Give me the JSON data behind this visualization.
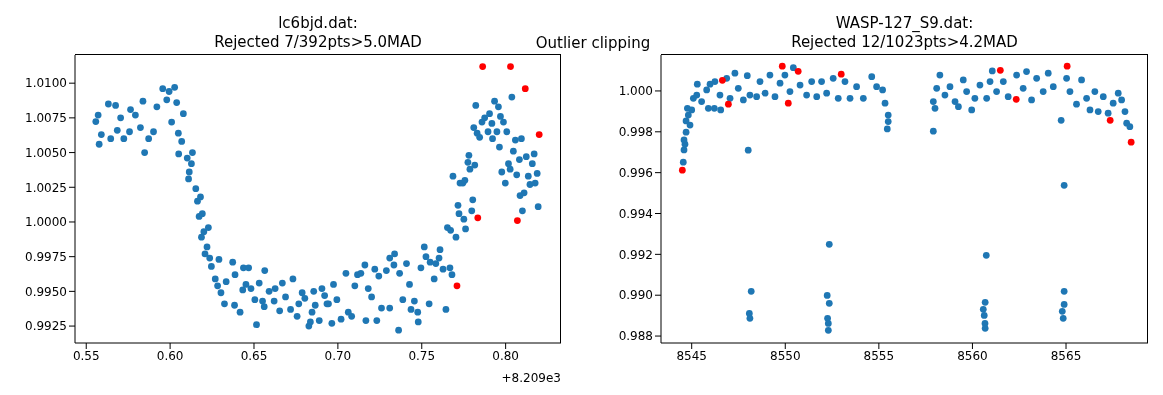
{
  "chart_data": [
    {
      "type": "scatter",
      "title": "lc6bjd.dat:\nRejected 7/392pts>5.0MAD",
      "xlabel": "+8.209e3",
      "annotations": [
        "Outlier clipping"
      ],
      "marker": "circle",
      "xlim": [
        0.5433,
        0.833
      ],
      "xticks": [
        0.55,
        {
          "value": 0.6,
          "label": "0.60"
        },
        0.65,
        {
          "value": 0.7,
          "label": "0.70"
        },
        0.75,
        {
          "value": 0.8,
          "label": "0.80"
        }
      ],
      "ylim": [
        0.99128,
        1.01203
      ],
      "yticks": [
        {
          "value": 0.9925,
          "label": "0.9925"
        },
        {
          "value": 0.995,
          "label": "0.9950"
        },
        {
          "value": 0.9975,
          "label": "0.9975"
        },
        {
          "value": 1,
          "label": "1.0000"
        },
        {
          "value": 1.0025,
          "label": "1.0025"
        },
        {
          "value": 1.005,
          "label": "1.0050"
        },
        {
          "value": 1.0075,
          "label": "1.0075"
        },
        {
          "value": 1.01,
          "label": "1.0100"
        }
      ],
      "series": [
        {
          "color": "#1f77b4",
          "x": [
            0.5557,
            0.5577,
            0.5571,
            0.559,
            0.5632,
            0.5675,
            0.5646,
            0.5685,
            0.5724,
            0.5705,
            0.5758,
            0.5764,
            0.5793,
            0.5838,
            0.5848,
            0.5823,
            0.5872,
            0.5901,
            0.5921,
            0.5956,
            0.5994,
            0.6027,
            0.598,
            0.6009,
            0.6039,
            0.6049,
            0.6079,
            0.6069,
            0.6051,
            0.6102,
            0.6133,
            0.6127,
            0.6114,
            0.611,
            0.6153,
            0.6163,
            0.6181,
            0.6173,
            0.6192,
            0.6187,
            0.6228,
            0.6201,
            0.622,
            0.6208,
            0.6236,
            0.6246,
            0.6269,
            0.6283,
            0.6303,
            0.6291,
            0.6324,
            0.6334,
            0.6373,
            0.6387,
            0.6384,
            0.6417,
            0.6433,
            0.6437,
            0.6468,
            0.6452,
            0.6482,
            0.6505,
            0.6515,
            0.6531,
            0.6564,
            0.6551,
            0.6561,
            0.659,
            0.6626,
            0.662,
            0.6653,
            0.6669,
            0.6688,
            0.6718,
            0.6732,
            0.6757,
            0.6767,
            0.6787,
            0.6803,
            0.6827,
            0.6836,
            0.6846,
            0.6856,
            0.6865,
            0.6889,
            0.6905,
            0.6921,
            0.6944,
            0.6964,
            0.6935,
            0.6974,
            0.6994,
            0.7019,
            0.7048,
            0.7062,
            0.7082,
            0.7101,
            0.7117,
            0.7137,
            0.7161,
            0.7167,
            0.7181,
            0.7201,
            0.722,
            0.7232,
            0.7244,
            0.726,
            0.7289,
            0.7309,
            0.7309,
            0.7334,
            0.7338,
            0.7362,
            0.7368,
            0.7387,
            0.7409,
            0.7427,
            0.7436,
            0.7456,
            0.7479,
            0.7476,
            0.7495,
            0.7515,
            0.7525,
            0.7544,
            0.755,
            0.7574,
            0.7584,
            0.7609,
            0.7603,
            0.7627,
            0.7644,
            0.7653,
            0.7672,
            0.7668,
            0.768,
            0.7704,
            0.7686,
            0.7716,
            0.7722,
            0.7728,
            0.7751,
            0.7761,
            0.7745,
            0.7757,
            0.7775,
            0.7781,
            0.7787,
            0.7804,
            0.7816,
            0.7798,
            0.781,
            0.7822,
            0.783,
            0.7845,
            0.7859,
            0.7875,
            0.7895,
            0.7904,
            0.7918,
            0.7922,
            0.7934,
            0.7948,
            0.7957,
            0.7969,
            0.7963,
            0.7987,
            0.7977,
            0.7998,
            0.8007,
            0.8017,
            0.8027,
            0.8037,
            0.8046,
            0.8058,
            0.8066,
            0.8082,
            0.8094,
            0.8086,
            0.81,
            0.811,
            0.8123,
            0.8135,
            0.8145,
            0.8159,
            0.817,
            0.8176,
            0.8188,
            0.8194
          ],
          "values": [
            1.00723,
            1.0056,
            1.0077,
            1.0063,
            1.0085,
            1.0084,
            1.006,
            1.0066,
            1.006,
            1.0075,
            1.0065,
            1.0081,
            1.0077,
            1.0087,
            1.005,
            1.0068,
            1.006,
            1.0065,
            1.0083,
            1.0096,
            1.0094,
            1.0097,
            1.0088,
            1.0072,
            1.0086,
            1.0064,
            1.0078,
            1.0058,
            1.0049,
            1.0046,
            1.005,
            1.0042,
            1.0036,
            1.0031,
            1.0024,
            1.0015,
            1.0018,
            1.0004,
            1.0006,
            0.9989,
            0.9996,
            0.9993,
            0.9982,
            0.9977,
            0.9974,
            0.9968,
            0.9959,
            0.9954,
            0.9949,
            0.9973,
            0.9941,
            0.9957,
            0.9971,
            0.9962,
            0.994,
            0.9935,
            0.9951,
            0.9967,
            0.9967,
            0.9955,
            0.9952,
            0.9944,
            0.9926,
            0.9956,
            0.9965,
            0.9943,
            0.9939,
            0.995,
            0.9952,
            0.9943,
            0.9936,
            0.9956,
            0.9946,
            0.9937,
            0.9959,
            0.9932,
            0.9941,
            0.9949,
            0.9945,
            0.9925,
            0.9928,
            0.9935,
            0.995,
            0.994,
            0.9929,
            0.9952,
            0.9947,
            0.9941,
            0.9927,
            0.9941,
            0.9955,
            0.9944,
            0.993,
            0.9963,
            0.9935,
            0.9932,
            0.9954,
            0.9962,
            0.9963,
            0.9969,
            0.9929,
            0.9952,
            0.9946,
            0.9966,
            0.9929,
            0.9961,
            0.9938,
            0.9965,
            0.9974,
            0.9938,
            0.9969,
            0.9977,
            0.9922,
            0.9963,
            0.9944,
            0.997,
            0.9955,
            0.9937,
            0.9943,
            0.9928,
            0.9935,
            0.9967,
            0.9982,
            0.9975,
            0.9941,
            0.9971,
            0.9959,
            0.997,
            0.998,
            0.9974,
            0.9966,
            0.9937,
            0.9996,
            0.9994,
            0.9967,
            0.9962,
            0.9989,
            1.0033,
            1.0012,
            1.0006,
            1.0028,
            1.0002,
            0.9995,
            1.0028,
            1.003,
            1.0043,
            1.0048,
            1.0038,
            1.0016,
            1.0041,
            1.0008,
            1.0068,
            1.0084,
            1.0064,
            1.0061,
            1.0072,
            1.0075,
            1.0065,
            1.0078,
            1.0071,
            1.006,
            1.0087,
            1.0065,
            1.0083,
            1.0076,
            1.0054,
            1.0072,
            1.0036,
            1.0028,
            1.0065,
            1.0042,
            1.0038,
            1.009,
            1.0051,
            1.0059,
            1.0034,
            1.0045,
            1.006,
            1.0019,
            1.0008,
            1.0021,
            1.0047,
            1.0033,
            1.0027,
            1.0042,
            1.0049,
            1.0028,
            1.0035,
            1.0011
          ]
        },
        {
          "color": "#ff0000",
          "x": [
            0.7863,
            0.8029,
            0.8117,
            0.82,
            0.7834,
            0.807,
            0.771
          ],
          "values": [
            1.0112,
            1.0112,
            1.0096,
            1.0063,
            1.0003,
            1.0001,
            0.9954
          ]
        }
      ]
    },
    {
      "type": "scatter",
      "title": "WASP-127_S9.dat:\nRejected 12/1023pts>4.2MAD",
      "marker": "circle",
      "xlim": [
        8543.36,
        8569.38
      ],
      "xticks": [
        8545,
        8550,
        8555,
        8560,
        8565
      ],
      "ylim": [
        0.98766,
        1.00176
      ],
      "yticks": [
        {
          "value": 0.988,
          "label": "0.988"
        },
        {
          "value": 0.99,
          "label": "0.990"
        },
        {
          "value": 0.992,
          "label": "0.992"
        },
        {
          "value": 0.994,
          "label": "0.994"
        },
        {
          "value": 0.996,
          "label": "0.996"
        },
        {
          "value": 0.998,
          "label": "0.998"
        },
        {
          "value": 1,
          "label": "1.000"
        }
      ],
      "series": [
        {
          "color": "#1f77b4",
          "x": [
            8544.55,
            8544.59,
            8544.64,
            8544.59,
            8544.7,
            8544.91,
            8544.7,
            8544.82,
            8544.77,
            8545,
            8545.09,
            8545.27,
            8545.3,
            8545.53,
            8545.8,
            8545.98,
            8545.89,
            8546.24,
            8546.21,
            8546.51,
            8546.55,
            8546.87,
            8547.05,
            8547.31,
            8547.49,
            8547.76,
            8547.97,
            8548.02,
            8548.11,
            8548.18,
            8548.08,
            8548.11,
            8548.47,
            8548.65,
            8548.92,
            8549.18,
            8549.45,
            8549.72,
            8549.98,
            8550.25,
            8550.43,
            8550.79,
            8551.14,
            8551.41,
            8551.68,
            8551.94,
            8552.21,
            8552.35,
            8552.24,
            8552.35,
            8552.26,
            8552.3,
            8552.3,
            8552.56,
            8552.83,
            8553.19,
            8553.46,
            8553.81,
            8554.17,
            8554.62,
            8554.88,
            8555.2,
            8555.33,
            8555.5,
            8555.5,
            8555.45,
            8557.91,
            8557.91,
            8558,
            8558.09,
            8558.26,
            8558.53,
            8558.8,
            8559.07,
            8559.25,
            8559.51,
            8559.69,
            8559.96,
            8560.13,
            8560.4,
            8560.76,
            8560.74,
            8560.68,
            8560.58,
            8560.63,
            8560.67,
            8560.68,
            8560.94,
            8561.06,
            8561.29,
            8561.65,
            8561.91,
            8562.36,
            8562.71,
            8562.89,
            8563.16,
            8563.43,
            8563.78,
            8564.05,
            8564.32,
            8564.74,
            8564.9,
            8564.9,
            8564.9,
            8564.8,
            8564.85,
            8565.03,
            8565.21,
            8565.56,
            8565.83,
            8566.1,
            8566.28,
            8566.54,
            8566.72,
            8566.99,
            8567.25,
            8567.52,
            8567.79,
            8567.97,
            8568.15,
            8568.24,
            8568.41
          ],
          "values": [
            0.99651,
            0.99711,
            0.99739,
            0.9976,
            0.99798,
            0.99833,
            0.99853,
            0.99882,
            0.99915,
            0.99907,
            0.99964,
            0.9998,
            1.00033,
            0.99948,
            1.00005,
            1.00033,
            0.99915,
            1.00046,
            0.99915,
            0.9998,
            0.99907,
            1.00062,
            0.99964,
            1.00087,
            1.00013,
            0.99956,
            1.00075,
            0.9971,
            0.9998,
            0.99019,
            0.98911,
            0.98887,
            0.99972,
            1.00046,
            0.99989,
            1.00078,
            0.99972,
            1.00038,
            1.00078,
            0.99997,
            1.00114,
            1.00029,
            0.9998,
            1.00046,
            0.99972,
            1.00046,
            0.99989,
            0.99249,
            0.98999,
            0.9896,
            0.98887,
            0.98862,
            0.98828,
            1.00062,
            0.99964,
            1.00046,
            0.99964,
            1.00021,
            0.99964,
            1.0007,
            1.00021,
            1.00005,
            0.9994,
            0.99882,
            0.9985,
            0.99814,
            0.99803,
            0.99948,
            0.99915,
            1.00013,
            1.00078,
            0.9998,
            1.00021,
            0.99948,
            0.99923,
            1.00054,
            0.99997,
            0.99907,
            0.99964,
            1.00029,
            0.99964,
            0.99195,
            0.98965,
            0.98931,
            0.98901,
            0.98862,
            0.98838,
            1.00046,
            1.00098,
            0.99997,
            1.00046,
            0.99972,
            1.00078,
            1.00013,
            1.00095,
            0.99956,
            1.00062,
            0.99997,
            1.00087,
            1.00021,
            0.99856,
            0.99538,
            0.99019,
            0.98955,
            0.98921,
            0.98887,
            1.00062,
            0.99997,
            0.99935,
            1.00054,
            0.99964,
            0.99907,
            0.99997,
            0.99899,
            0.99972,
            0.99891,
            0.9994,
            0.99989,
            0.99956,
            0.99899,
            0.99842,
            0.99825
          ]
        },
        {
          "color": "#ff0000",
          "x": [
            8544.5,
            8546.64,
            8546.96,
            8549.84,
            8550.16,
            8550.69,
            8552.99,
            8561.49,
            8562.34,
            8565.06,
            8567.36,
            8568.48
          ],
          "values": [
            0.99612,
            1.00052,
            0.99935,
            1.00121,
            0.9994,
            1.00096,
            1.00082,
            1.00101,
            0.99959,
            1.00121,
            0.99856,
            0.99749
          ]
        }
      ]
    }
  ]
}
